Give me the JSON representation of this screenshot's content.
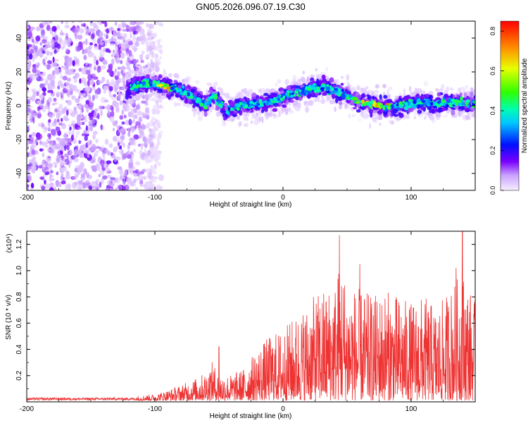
{
  "chart_data": [
    {
      "type": "heatmap",
      "title": "GN05.2026.096.07.19.C30",
      "xlabel": "Height of straight line (km)",
      "ylabel": "Frequency (Hz)",
      "xlim": [
        -200,
        150
      ],
      "ylim": [
        -50,
        50
      ],
      "xticks": [
        -200,
        -100,
        0,
        100
      ],
      "yticks": [
        -40,
        -20,
        0,
        20,
        40
      ],
      "xtick_labels": [
        "-200",
        "-100",
        "0",
        "100"
      ],
      "ytick_labels": [
        "-40",
        "-20",
        "0",
        "20",
        "40"
      ],
      "colorbar": {
        "label": "Normalized spectral amplitude",
        "range": [
          0,
          0.85
        ],
        "ticks": [
          0.0,
          0.2,
          0.4,
          0.6,
          0.8
        ],
        "tick_labels": [
          "0.0",
          "0.2",
          "0.4",
          "0.6",
          "0.8"
        ],
        "colors": [
          "#f4eaff",
          "#8a2be2",
          "#0000ff",
          "#00ffff",
          "#00ff00",
          "#ffff00",
          "#ff0000"
        ]
      },
      "ridge": {
        "x": [
          -120,
          -110,
          -100,
          -90,
          -80,
          -70,
          -60,
          -55,
          -50,
          -45,
          -40,
          -35,
          -30,
          -20,
          -10,
          0,
          10,
          20,
          30,
          40,
          50,
          60,
          70,
          80,
          90,
          100,
          110,
          120,
          130,
          140,
          150
        ],
        "y": [
          10,
          13,
          13,
          11,
          9,
          5,
          0,
          6,
          2,
          -3,
          -2,
          0,
          0,
          1,
          2,
          5,
          8,
          10,
          11,
          9,
          6,
          2,
          1,
          -1,
          0,
          1,
          2,
          1,
          2,
          2,
          1
        ]
      },
      "noise_region_x": [
        -200,
        -100
      ]
    },
    {
      "type": "line",
      "title": "",
      "xlabel": "Height of straight line (km)",
      "ylabel": "SNR (10 * v/v)",
      "y_multiplier": "(x10⁴)",
      "xlim": [
        -200,
        150
      ],
      "ylim": [
        0,
        1.3
      ],
      "xticks": [
        -200,
        -100,
        0,
        100
      ],
      "yticks": [
        0.2,
        0.4,
        0.6,
        0.8,
        1.0,
        1.2
      ],
      "xtick_labels": [
        "-200",
        "-100",
        "0",
        "100"
      ],
      "ytick_labels": [
        "0.2",
        "0.4",
        "0.6",
        "0.8",
        "1.0",
        "1.2"
      ],
      "line_color": "#ee3333",
      "envelope": {
        "x": [
          -200,
          -120,
          -100,
          -90,
          -80,
          -70,
          -60,
          -55,
          -50,
          -40,
          -30,
          -20,
          -10,
          0,
          10,
          20,
          30,
          40,
          45,
          50,
          60,
          70,
          80,
          90,
          100,
          110,
          120,
          130,
          140,
          150
        ],
        "y": [
          0.02,
          0.03,
          0.05,
          0.08,
          0.12,
          0.16,
          0.22,
          0.3,
          0.2,
          0.2,
          0.25,
          0.4,
          0.5,
          0.55,
          0.65,
          0.75,
          0.85,
          0.9,
          1.1,
          0.9,
          0.85,
          0.8,
          0.85,
          0.8,
          0.75,
          0.8,
          0.7,
          0.85,
          1.0,
          0.75
        ]
      },
      "peaks": [
        {
          "x": 44,
          "y": 1.27
        },
        {
          "x": 140,
          "y": 1.3
        },
        {
          "x": -50,
          "y": 0.42
        },
        {
          "x": 60,
          "y": 1.05
        },
        {
          "x": 135,
          "y": 1.02
        }
      ]
    }
  ]
}
